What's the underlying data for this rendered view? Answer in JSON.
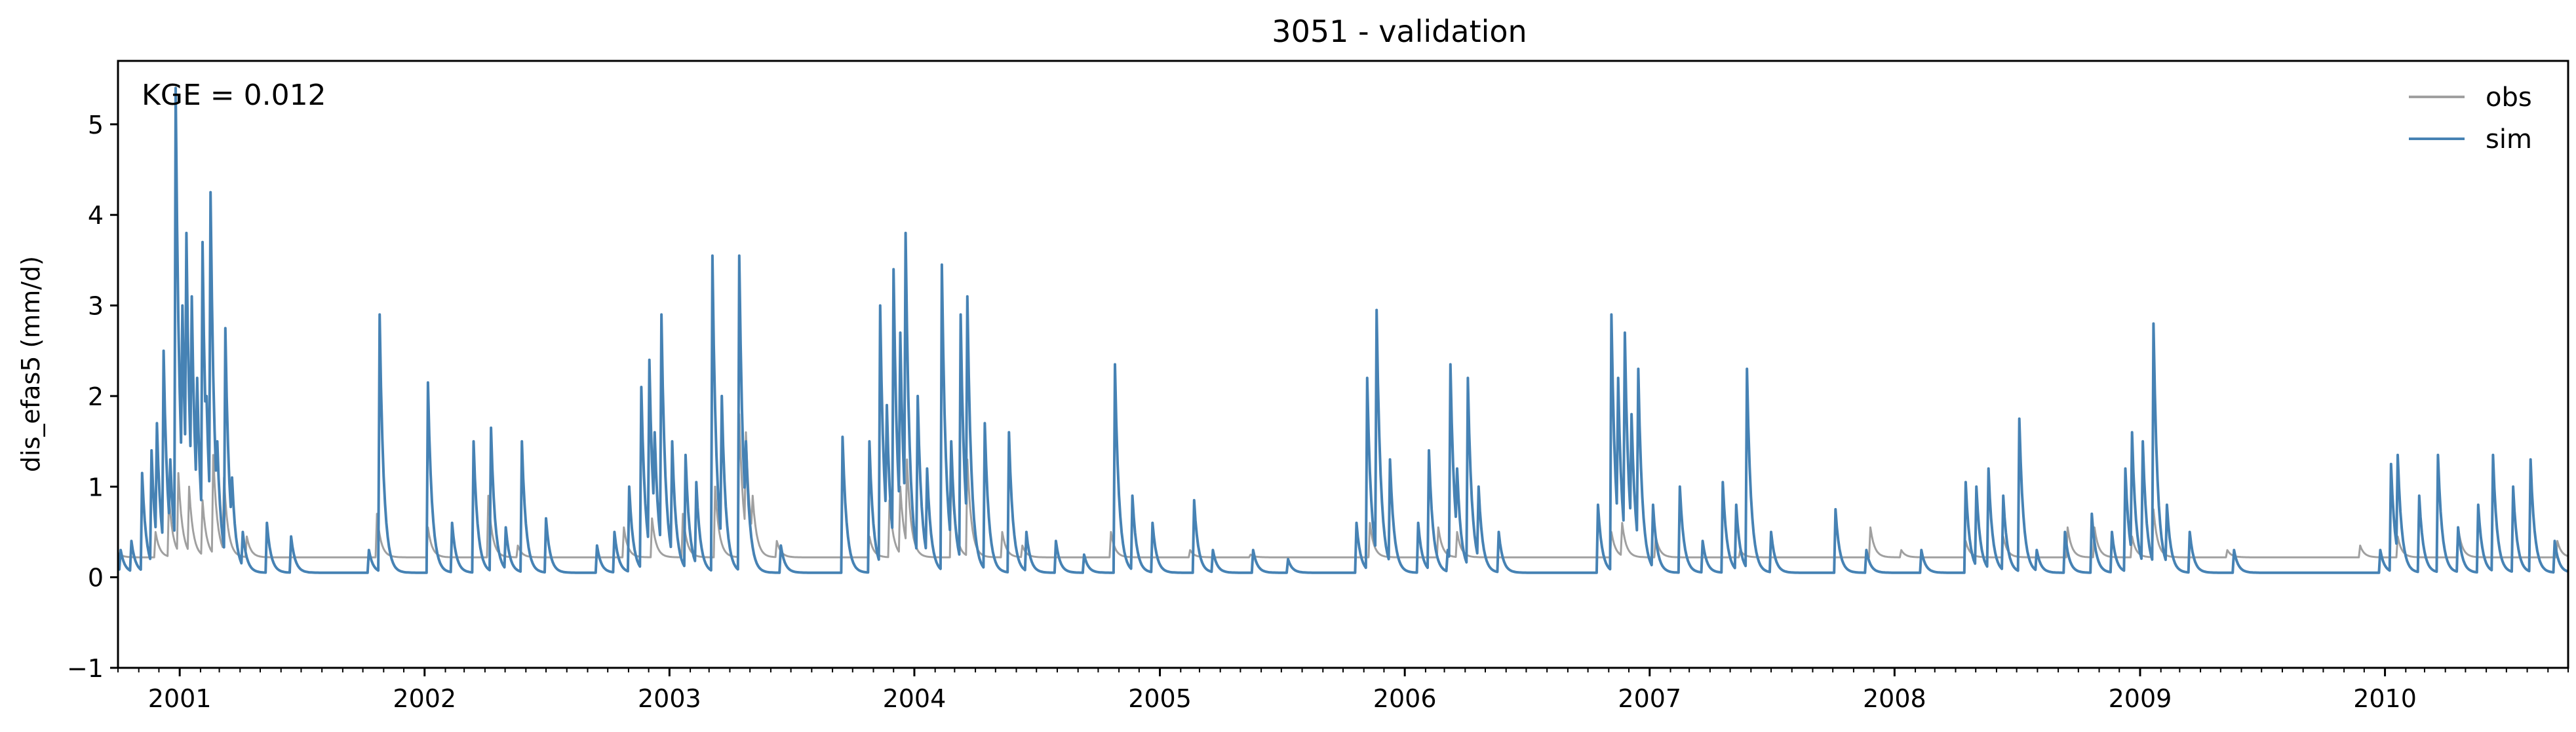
{
  "chart_data": {
    "type": "line",
    "title": "3051 - validation",
    "xlabel": "",
    "ylabel": "dis_efas5 (mm/d)",
    "annotation": "KGE = 0.012",
    "xlim": [
      "2000-10-01",
      "2010-10-01"
    ],
    "ylim": [
      -1,
      5.7
    ],
    "y_ticks": [
      -1,
      0,
      1,
      2,
      3,
      4,
      5
    ],
    "y_tick_labels": [
      "−1",
      "0",
      "1",
      "2",
      "3",
      "4",
      "5"
    ],
    "x_ticks": [
      "2001-01-01",
      "2002-01-01",
      "2003-01-01",
      "2004-01-01",
      "2005-01-01",
      "2006-01-01",
      "2007-01-01",
      "2008-01-01",
      "2009-01-01",
      "2010-01-01"
    ],
    "x_tick_labels": [
      "2001",
      "2002",
      "2003",
      "2004",
      "2005",
      "2006",
      "2007",
      "2008",
      "2009",
      "2010"
    ],
    "grid": false,
    "legend": {
      "position": "top-right",
      "entries": [
        "obs",
        "sim"
      ]
    },
    "series": [
      {
        "name": "obs",
        "color": "#a0a0a0",
        "baseline": 0.22,
        "peaks": [
          [
            "2000-11-25",
            0.5
          ],
          [
            "2000-12-15",
            0.9
          ],
          [
            "2000-12-30",
            1.15
          ],
          [
            "2001-01-15",
            1.0
          ],
          [
            "2001-02-03",
            0.85
          ],
          [
            "2001-02-20",
            1.35
          ],
          [
            "2001-03-08",
            1.1
          ],
          [
            "2001-04-10",
            0.45
          ],
          [
            "2001-10-21",
            0.7
          ],
          [
            "2002-01-05",
            0.55
          ],
          [
            "2002-04-05",
            0.9
          ],
          [
            "2002-05-20",
            0.35
          ],
          [
            "2002-10-25",
            0.55
          ],
          [
            "2002-12-05",
            0.65
          ],
          [
            "2003-01-20",
            0.7
          ],
          [
            "2003-03-10",
            1.0
          ],
          [
            "2003-04-15",
            1.8
          ],
          [
            "2003-04-25",
            1.6
          ],
          [
            "2003-05-05",
            0.9
          ],
          [
            "2003-06-10",
            0.4
          ],
          [
            "2003-10-25",
            0.45
          ],
          [
            "2003-11-25",
            0.85
          ],
          [
            "2003-12-10",
            1.0
          ],
          [
            "2003-12-20",
            1.3
          ],
          [
            "2004-02-25",
            1.2
          ],
          [
            "2004-03-20",
            1.3
          ],
          [
            "2004-05-10",
            0.5
          ],
          [
            "2004-06-10",
            0.35
          ],
          [
            "2004-10-20",
            0.5
          ],
          [
            "2005-02-15",
            0.3
          ],
          [
            "2005-05-15",
            0.25
          ],
          [
            "2005-11-10",
            0.6
          ],
          [
            "2006-02-20",
            0.55
          ],
          [
            "2006-03-20",
            0.5
          ],
          [
            "2006-11-05",
            0.5
          ],
          [
            "2006-11-20",
            0.6
          ],
          [
            "2007-01-10",
            0.45
          ],
          [
            "2007-05-15",
            0.3
          ],
          [
            "2007-11-25",
            0.55
          ],
          [
            "2008-01-10",
            0.3
          ],
          [
            "2008-04-15",
            0.4
          ],
          [
            "2008-06-10",
            0.45
          ],
          [
            "2008-09-15",
            0.55
          ],
          [
            "2008-10-25",
            0.55
          ],
          [
            "2008-12-20",
            0.45
          ],
          [
            "2009-01-20",
            0.75
          ],
          [
            "2009-05-10",
            0.3
          ],
          [
            "2009-11-25",
            0.35
          ],
          [
            "2010-01-20",
            0.45
          ],
          [
            "2010-04-20",
            0.55
          ],
          [
            "2010-09-15",
            0.4
          ]
        ]
      },
      {
        "name": "sim",
        "color": "#4682b4",
        "baseline": 0.05,
        "peaks": [
          [
            "2000-10-05",
            0.3
          ],
          [
            "2000-10-20",
            0.4
          ],
          [
            "2000-11-05",
            1.15
          ],
          [
            "2000-11-20",
            1.4
          ],
          [
            "2000-11-28",
            1.7
          ],
          [
            "2000-12-08",
            2.5
          ],
          [
            "2000-12-18",
            1.3
          ],
          [
            "2000-12-26",
            5.4
          ],
          [
            "2001-01-05",
            3.0
          ],
          [
            "2001-01-10",
            3.8
          ],
          [
            "2001-01-18",
            3.1
          ],
          [
            "2001-01-26",
            2.2
          ],
          [
            "2001-02-03",
            3.7
          ],
          [
            "2001-02-10",
            2.0
          ],
          [
            "2001-02-15",
            4.25
          ],
          [
            "2001-02-25",
            1.5
          ],
          [
            "2001-03-10",
            2.75
          ],
          [
            "2001-03-20",
            1.1
          ],
          [
            "2001-04-05",
            0.5
          ],
          [
            "2001-05-10",
            0.6
          ],
          [
            "2001-06-15",
            0.45
          ],
          [
            "2001-10-10",
            0.3
          ],
          [
            "2001-10-25",
            2.9
          ],
          [
            "2002-01-05",
            2.15
          ],
          [
            "2002-02-10",
            0.6
          ],
          [
            "2002-03-15",
            1.5
          ],
          [
            "2002-04-10",
            1.65
          ],
          [
            "2002-05-01",
            0.55
          ],
          [
            "2002-05-25",
            1.5
          ],
          [
            "2002-06-30",
            0.65
          ],
          [
            "2002-09-15",
            0.35
          ],
          [
            "2002-10-10",
            0.5
          ],
          [
            "2002-11-01",
            1.0
          ],
          [
            "2002-11-20",
            2.1
          ],
          [
            "2002-12-01",
            2.4
          ],
          [
            "2002-12-10",
            1.6
          ],
          [
            "2002-12-20",
            2.9
          ],
          [
            "2003-01-05",
            1.5
          ],
          [
            "2003-01-25",
            1.35
          ],
          [
            "2003-02-10",
            1.05
          ],
          [
            "2003-03-05",
            3.55
          ],
          [
            "2003-03-20",
            2.0
          ],
          [
            "2003-04-15",
            3.55
          ],
          [
            "2003-04-25",
            1.5
          ],
          [
            "2003-06-15",
            0.35
          ],
          [
            "2003-09-15",
            1.55
          ],
          [
            "2003-10-25",
            1.5
          ],
          [
            "2003-11-10",
            3.0
          ],
          [
            "2003-11-20",
            1.9
          ],
          [
            "2003-12-01",
            3.4
          ],
          [
            "2003-12-10",
            2.7
          ],
          [
            "2003-12-18",
            3.8
          ],
          [
            "2004-01-05",
            2.0
          ],
          [
            "2004-01-20",
            1.2
          ],
          [
            "2004-02-10",
            3.45
          ],
          [
            "2004-02-25",
            1.5
          ],
          [
            "2004-03-10",
            2.9
          ],
          [
            "2004-03-20",
            3.1
          ],
          [
            "2004-04-15",
            1.7
          ],
          [
            "2004-05-20",
            1.6
          ],
          [
            "2004-06-15",
            0.5
          ],
          [
            "2004-07-30",
            0.4
          ],
          [
            "2004-09-10",
            0.25
          ],
          [
            "2004-10-25",
            2.35
          ],
          [
            "2004-11-20",
            0.9
          ],
          [
            "2004-12-20",
            0.6
          ],
          [
            "2005-02-20",
            0.85
          ],
          [
            "2005-03-20",
            0.3
          ],
          [
            "2005-05-20",
            0.3
          ],
          [
            "2005-07-10",
            0.2
          ],
          [
            "2005-10-20",
            0.6
          ],
          [
            "2005-11-05",
            2.2
          ],
          [
            "2005-11-20",
            2.95
          ],
          [
            "2005-12-10",
            1.3
          ],
          [
            "2006-01-20",
            0.6
          ],
          [
            "2006-02-05",
            1.4
          ],
          [
            "2006-03-05",
            0.3
          ],
          [
            "2006-03-10",
            2.35
          ],
          [
            "2006-03-20",
            1.2
          ],
          [
            "2006-04-05",
            2.2
          ],
          [
            "2006-04-20",
            1.0
          ],
          [
            "2006-05-20",
            0.5
          ],
          [
            "2006-10-15",
            0.8
          ],
          [
            "2006-11-05",
            2.9
          ],
          [
            "2006-11-15",
            2.2
          ],
          [
            "2006-11-25",
            2.7
          ],
          [
            "2006-12-05",
            1.8
          ],
          [
            "2006-12-15",
            2.3
          ],
          [
            "2007-01-05",
            0.8
          ],
          [
            "2007-02-15",
            1.0
          ],
          [
            "2007-03-20",
            0.4
          ],
          [
            "2007-04-20",
            1.05
          ],
          [
            "2007-05-10",
            0.8
          ],
          [
            "2007-05-25",
            2.3
          ],
          [
            "2007-06-30",
            0.5
          ],
          [
            "2007-10-05",
            0.75
          ],
          [
            "2007-11-20",
            0.3
          ],
          [
            "2008-02-10",
            0.3
          ],
          [
            "2008-04-15",
            1.05
          ],
          [
            "2008-05-01",
            1.0
          ],
          [
            "2008-05-20",
            1.2
          ],
          [
            "2008-06-10",
            0.9
          ],
          [
            "2008-07-05",
            1.75
          ],
          [
            "2008-07-30",
            0.3
          ],
          [
            "2008-09-10",
            0.5
          ],
          [
            "2008-10-20",
            0.7
          ],
          [
            "2008-11-20",
            0.5
          ],
          [
            "2008-12-10",
            1.2
          ],
          [
            "2008-12-20",
            1.6
          ],
          [
            "2009-01-05",
            1.5
          ],
          [
            "2009-01-20",
            2.8
          ],
          [
            "2009-02-10",
            0.8
          ],
          [
            "2009-03-15",
            0.5
          ],
          [
            "2009-05-20",
            0.3
          ],
          [
            "2009-12-25",
            0.3
          ],
          [
            "2010-01-10",
            1.25
          ],
          [
            "2010-01-20",
            1.35
          ],
          [
            "2010-02-20",
            0.9
          ],
          [
            "2010-03-20",
            1.35
          ],
          [
            "2010-04-20",
            0.55
          ],
          [
            "2010-05-20",
            0.8
          ],
          [
            "2010-06-10",
            1.35
          ],
          [
            "2010-07-10",
            1.0
          ],
          [
            "2010-08-05",
            1.3
          ],
          [
            "2010-09-10",
            0.4
          ]
        ]
      }
    ]
  }
}
